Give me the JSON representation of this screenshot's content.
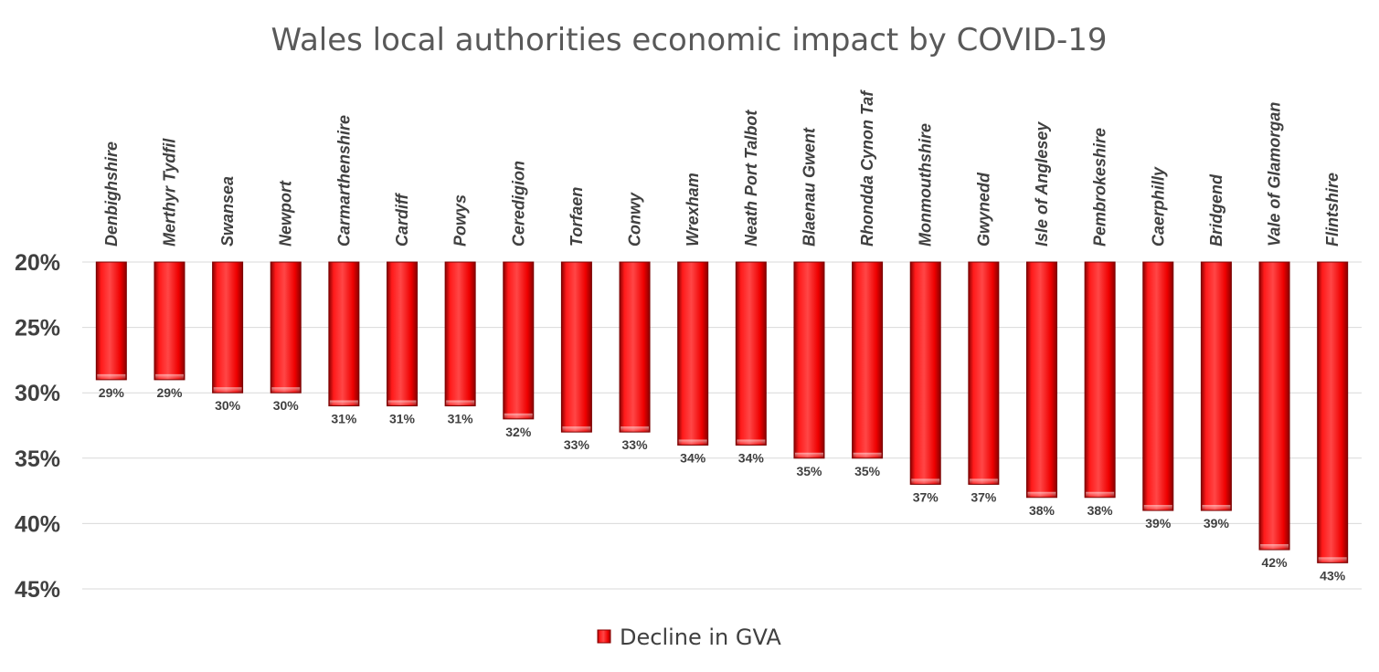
{
  "chart_data": {
    "type": "bar",
    "title": "Wales local authorities economic impact by COVID-19",
    "orientation": "vertical, inverted value axis (bars hang down from 20%)",
    "categories": [
      "Denbighshire",
      "Merthyr Tydfil",
      "Swansea",
      "Newport",
      "Carmarthenshire",
      "Cardiff",
      "Powys",
      "Ceredigion",
      "Torfaen",
      "Conwy",
      "Wrexham",
      "Neath Port Talbot",
      "Blaenau Gwent",
      "Rhondda Cynon Taf",
      "Monmouthshire",
      "Gwynedd",
      "Isle of Anglesey",
      "Pembrokeshire",
      "Caerphilly",
      "Bridgend",
      "Vale of Glamorgan",
      "Flintshire"
    ],
    "series": [
      {
        "name": "Decline in GVA",
        "values": [
          29,
          29,
          30,
          30,
          31,
          31,
          31,
          32,
          33,
          33,
          34,
          34,
          35,
          35,
          37,
          37,
          38,
          38,
          39,
          39,
          42,
          43
        ],
        "labels": [
          "29%",
          "29%",
          "30%",
          "30%",
          "31%",
          "31%",
          "31%",
          "32%",
          "33%",
          "33%",
          "34%",
          "34%",
          "35%",
          "35%",
          "37%",
          "37%",
          "38%",
          "38%",
          "39%",
          "39%",
          "42%",
          "43%"
        ],
        "color": "#ff0000"
      }
    ],
    "yticks": [
      20,
      25,
      30,
      35,
      40,
      45
    ],
    "ytick_labels": [
      "20%",
      "25%",
      "30%",
      "35%",
      "40%",
      "45%"
    ],
    "ylim": [
      20,
      45
    ],
    "y_inverted": true,
    "xlabel": "",
    "ylabel": "",
    "grid": true,
    "legend": {
      "position": "bottom",
      "label": "Decline in GVA"
    }
  }
}
